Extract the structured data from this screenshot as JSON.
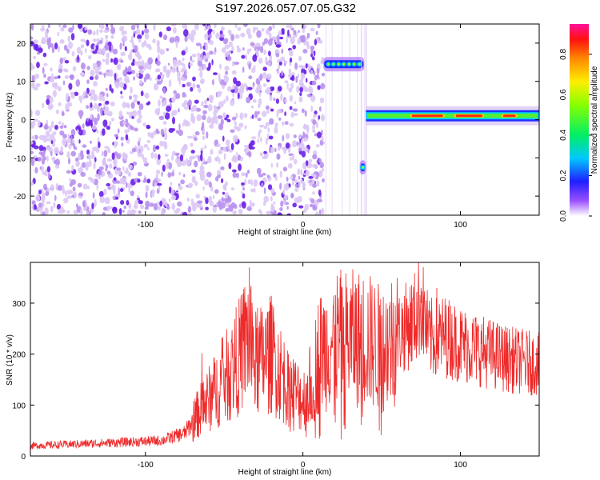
{
  "title": "S197.2026.057.07.05.G32",
  "colors": {
    "speckle_light": "#dcc8f5",
    "speckle_mid": "#b890ee",
    "speckle_dark": "#6a1fe6",
    "snr_line": "#ee2a2a"
  },
  "chart_data": [
    {
      "type": "heatmap",
      "name": "spectrogram",
      "xlabel": "Height of straight line (km)",
      "ylabel": "Frequency (Hz)",
      "xlim": [
        -173,
        150
      ],
      "ylim": [
        -25,
        25
      ],
      "xticks": [
        -100,
        0,
        100
      ],
      "yticks": [
        -20,
        -10,
        0,
        10,
        20
      ],
      "grid": false,
      "colorbar": {
        "label": "Normalized spectral amplitude",
        "range": [
          0.0,
          0.95
        ],
        "ticks": [
          0.0,
          0.2,
          0.4,
          0.6,
          0.8
        ],
        "tick_labels": [
          "0.0",
          "0.2",
          "0.4",
          "0.6",
          "0.8"
        ],
        "colormap": "rainbow"
      },
      "regions": [
        {
          "kind": "noise_speckle",
          "x_range": [
            -173,
            13
          ],
          "freq_range": [
            -25,
            25
          ]
        },
        {
          "kind": "signal_blob",
          "x_range": [
            13,
            39
          ],
          "freq_center": 14.5,
          "amplitude": 0.4
        },
        {
          "kind": "signal_blob",
          "x_range": [
            36,
            40
          ],
          "freq_center": -12.5,
          "amplitude": 0.3
        },
        {
          "kind": "signal_band",
          "x_range": [
            40,
            150
          ],
          "freq_center": 1.0,
          "amplitude": 0.85
        }
      ]
    },
    {
      "type": "line",
      "name": "snr",
      "xlabel": "Height of straight line (km)",
      "ylabel": "SNR (10 * v/v)",
      "xlim": [
        -173,
        150
      ],
      "ylim": [
        0,
        380
      ],
      "xticks": [
        -100,
        0,
        100
      ],
      "yticks": [
        0,
        100,
        200,
        300
      ],
      "grid": false,
      "series": [
        {
          "name": "SNR",
          "envelope_points": [
            {
              "x": -173,
              "y": 20
            },
            {
              "x": -130,
              "y": 25
            },
            {
              "x": -90,
              "y": 30
            },
            {
              "x": -75,
              "y": 45
            },
            {
              "x": -65,
              "y": 90
            },
            {
              "x": -55,
              "y": 130
            },
            {
              "x": -45,
              "y": 170
            },
            {
              "x": -38,
              "y": 210
            },
            {
              "x": -35,
              "y": 240
            },
            {
              "x": -30,
              "y": 180
            },
            {
              "x": -20,
              "y": 200
            },
            {
              "x": -10,
              "y": 140
            },
            {
              "x": 0,
              "y": 110
            },
            {
              "x": 5,
              "y": 140
            },
            {
              "x": 10,
              "y": 200
            },
            {
              "x": 20,
              "y": 230
            },
            {
              "x": 40,
              "y": 230
            },
            {
              "x": 50,
              "y": 210
            },
            {
              "x": 60,
              "y": 240
            },
            {
              "x": 70,
              "y": 265
            },
            {
              "x": 75,
              "y": 300
            },
            {
              "x": 80,
              "y": 230
            },
            {
              "x": 90,
              "y": 235
            },
            {
              "x": 100,
              "y": 220
            },
            {
              "x": 110,
              "y": 210
            },
            {
              "x": 120,
              "y": 200
            },
            {
              "x": 130,
              "y": 190
            },
            {
              "x": 140,
              "y": 185
            },
            {
              "x": 150,
              "y": 180
            }
          ],
          "notable_peaks": [
            {
              "x": -34,
              "y": 370
            },
            {
              "x": 75,
              "y": 330
            },
            {
              "x": 85,
              "y": 330
            }
          ]
        }
      ]
    }
  ]
}
